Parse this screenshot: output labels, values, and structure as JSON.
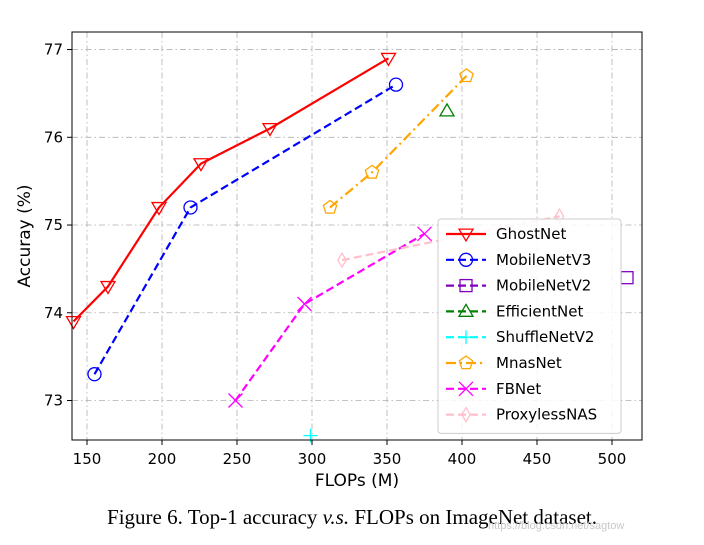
{
  "chart_data": {
    "type": "line",
    "title": "",
    "xlabel": "FLOPs (M)",
    "ylabel": "Accuray (%)",
    "xlim": [
      140,
      520
    ],
    "ylim": [
      72.55,
      77.2
    ],
    "xticks": [
      150,
      200,
      250,
      300,
      350,
      400,
      450,
      500
    ],
    "yticks": [
      73,
      74,
      75,
      76,
      77
    ],
    "grid": true,
    "legend_position": "lower-right",
    "series": [
      {
        "name": "GhostNet",
        "color": "#ff0000",
        "linestyle": "solid",
        "marker": "triangle-down",
        "x": [
          141,
          164,
          198,
          226,
          272,
          351
        ],
        "y": [
          73.9,
          74.3,
          75.2,
          75.7,
          76.1,
          76.9
        ]
      },
      {
        "name": "MobileNetV3",
        "color": "#0000ff",
        "linestyle": "dashed",
        "marker": "circle",
        "x": [
          155,
          219,
          356
        ],
        "y": [
          73.3,
          75.2,
          76.6
        ]
      },
      {
        "name": "MobileNetV2",
        "color": "#8000bf",
        "linestyle": "dashed",
        "marker": "square",
        "x": [
          510
        ],
        "y": [
          74.4
        ]
      },
      {
        "name": "EfficientNet",
        "color": "#008000",
        "linestyle": "dashed",
        "marker": "triangle-up",
        "x": [
          390
        ],
        "y": [
          76.3
        ]
      },
      {
        "name": "ShuffleNetV2",
        "color": "#00ffff",
        "linestyle": "dashed",
        "marker": "plus",
        "x": [
          299
        ],
        "y": [
          72.6
        ]
      },
      {
        "name": "MnasNet",
        "color": "#ffa500",
        "linestyle": "dashdot",
        "marker": "pentagon",
        "x": [
          312,
          340,
          403
        ],
        "y": [
          75.2,
          75.6,
          76.7
        ]
      },
      {
        "name": "FBNet",
        "color": "#ff00ff",
        "linestyle": "dashed",
        "marker": "x",
        "x": [
          249,
          295,
          375
        ],
        "y": [
          73.0,
          74.1,
          74.9
        ]
      },
      {
        "name": "ProxylessNAS",
        "color": "#ffc0cb",
        "linestyle": "dashed",
        "marker": "diamond-thin",
        "x": [
          320,
          465
        ],
        "y": [
          74.6,
          75.1
        ]
      }
    ]
  },
  "caption": {
    "prefix": "Figure 6. Top-1 accuracy ",
    "italic": "v.s.",
    "suffix": " FLOPs on ImageNet dataset."
  },
  "watermark": "https://blog.csdn.net/sagtow"
}
